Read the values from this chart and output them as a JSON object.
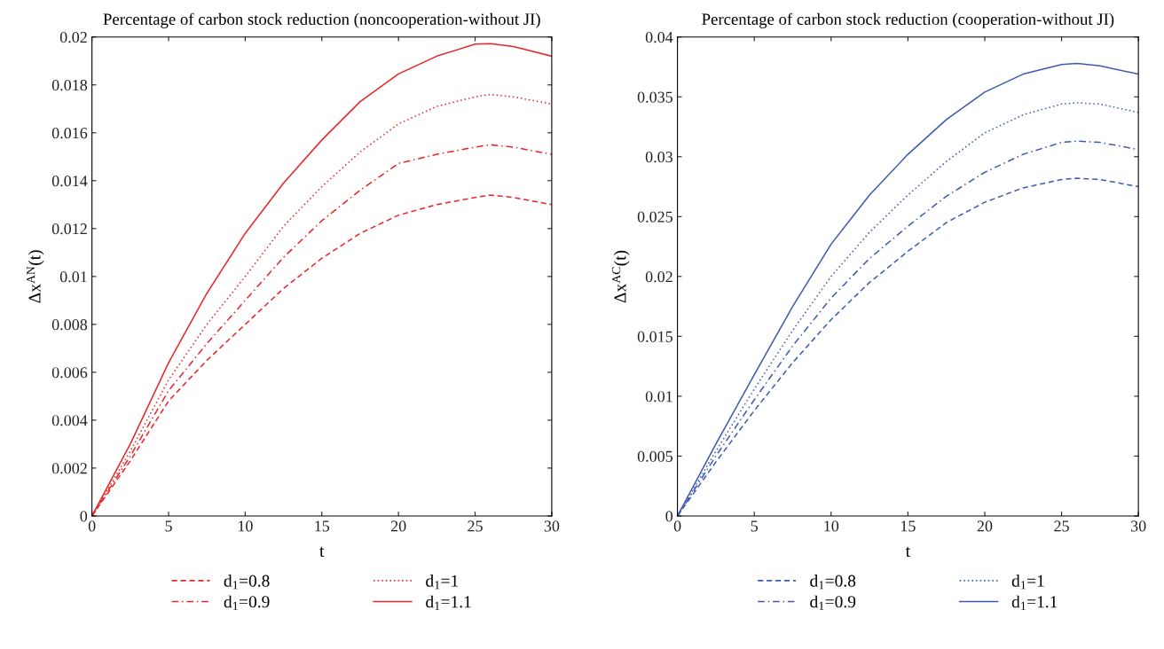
{
  "chart_data": [
    {
      "type": "line",
      "title": "Percentage of carbon stock reduction (noncooperation-without JI)",
      "xlabel": "t",
      "ylabel": "Δx$^{AN}$(t)",
      "xlim": [
        0,
        30
      ],
      "ylim": [
        0,
        0.02
      ],
      "xticks": [
        0,
        5,
        10,
        15,
        20,
        25,
        30
      ],
      "yticks": [
        0,
        0.002,
        0.004,
        0.006,
        0.008,
        0.01,
        0.012,
        0.014,
        0.016,
        0.018,
        0.02
      ],
      "legend": "bottom",
      "grid": false,
      "x": [
        0,
        2.5,
        5,
        7.5,
        10,
        12.5,
        15,
        17.5,
        20,
        22.5,
        25,
        26,
        27.5,
        30
      ],
      "series": [
        {
          "name": "d$_{1}$=0.8",
          "color": "#e8262a",
          "line_style": "dashed",
          "values": [
            0,
            0.0023,
            0.0048,
            0.0065,
            0.008,
            0.0095,
            0.01076,
            0.0118,
            0.01256,
            0.013,
            0.0133,
            0.0134,
            0.0133,
            0.013
          ]
        },
        {
          "name": "d$_{1}$=0.9",
          "color": "#e8262a",
          "line_style": "dashdot",
          "values": [
            0,
            0.0025,
            0.00523,
            0.0072,
            0.009,
            0.0108,
            0.01233,
            0.0136,
            0.01472,
            0.0151,
            0.0154,
            0.0155,
            0.0154,
            0.0151
          ]
        },
        {
          "name": "d$_{1}$=1",
          "color": "#e8262a",
          "line_style": "dotted",
          "values": [
            0,
            0.0027,
            0.00568,
            0.008,
            0.01,
            0.0121,
            0.01375,
            0.0152,
            0.01637,
            0.0171,
            0.0175,
            0.0176,
            0.0175,
            0.0172
          ]
        },
        {
          "name": "d$_{1}$=1.1",
          "color": "#e8262a",
          "line_style": "solid",
          "values": [
            0,
            0.003,
            0.0064,
            0.0093,
            0.0118,
            0.0139,
            0.0157,
            0.0173,
            0.01846,
            0.0192,
            0.0197,
            0.01972,
            0.0196,
            0.0192
          ]
        }
      ]
    },
    {
      "type": "line",
      "title": "Percentage of carbon stock reduction (cooperation-without JI)",
      "xlabel": "t",
      "ylabel": "Δx$^{AC}$(t)",
      "xlim": [
        0,
        30
      ],
      "ylim": [
        0,
        0.04
      ],
      "xticks": [
        0,
        5,
        10,
        15,
        20,
        25,
        30
      ],
      "yticks": [
        0,
        0.005,
        0.01,
        0.015,
        0.02,
        0.025,
        0.03,
        0.035,
        0.04
      ],
      "legend": "bottom",
      "grid": false,
      "x": [
        0,
        2.5,
        5,
        7.5,
        10,
        12.5,
        15,
        17.5,
        20,
        22.5,
        25,
        26,
        27.5,
        30
      ],
      "series": [
        {
          "name": "d$_{1}$=0.8",
          "color": "#3d5ab0",
          "line_style": "dashed",
          "values": [
            0,
            0.0045,
            0.0088,
            0.0128,
            0.0164,
            0.0195,
            0.0221,
            0.0245,
            0.0262,
            0.0274,
            0.0281,
            0.0282,
            0.0281,
            0.0275
          ]
        },
        {
          "name": "d$_{1}$=0.9",
          "color": "#3d5ab0",
          "line_style": "dashdot",
          "values": [
            0,
            0.005,
            0.0097,
            0.0142,
            0.0182,
            0.0215,
            0.0242,
            0.0267,
            0.0287,
            0.0302,
            0.0312,
            0.0313,
            0.0312,
            0.0306
          ]
        },
        {
          "name": "d$_{1}$=1",
          "color": "#3d5ab0",
          "line_style": "dotted",
          "values": [
            0,
            0.0054,
            0.0106,
            0.0155,
            0.02,
            0.0237,
            0.0268,
            0.0296,
            0.032,
            0.0335,
            0.0344,
            0.0345,
            0.0344,
            0.0337
          ]
        },
        {
          "name": "d$_{1}$=1.1",
          "color": "#3d5ab0",
          "line_style": "solid",
          "values": [
            0,
            0.006,
            0.0118,
            0.0175,
            0.0227,
            0.0268,
            0.0302,
            0.0331,
            0.0354,
            0.0369,
            0.0377,
            0.0378,
            0.0376,
            0.0369
          ]
        }
      ]
    }
  ]
}
